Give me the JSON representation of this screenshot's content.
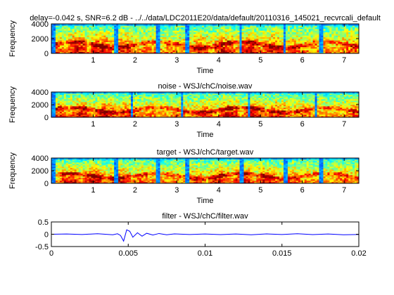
{
  "chart_data": [
    {
      "type": "heatmap",
      "title": "delay=-0.042 s, SNR=6.2 dB - ../../data/LDC2011E20/data/default/20110316_145021_recvrcali_default",
      "xlabel": "Time",
      "ylabel": "Frequency",
      "xlim": [
        0,
        7.35
      ],
      "ylim": [
        0,
        4000
      ],
      "xticks": [
        1,
        2,
        3,
        4,
        5,
        6,
        7
      ],
      "yticks": [
        0,
        2000,
        4000
      ],
      "colormap": "jet",
      "seed": 11,
      "silences": [
        [
          0.0,
          0.12
        ],
        [
          1.52,
          1.6
        ],
        [
          2.52,
          2.6
        ],
        [
          3.22,
          3.3
        ],
        [
          4.48,
          4.55
        ],
        [
          5.55,
          5.62
        ],
        [
          6.42,
          6.5
        ]
      ]
    },
    {
      "type": "heatmap",
      "title": "noise - WSJ/chC/noise.wav",
      "xlabel": "Time",
      "ylabel": "Frequency",
      "xlim": [
        0,
        7.35
      ],
      "ylim": [
        0,
        4000
      ],
      "xticks": [
        1,
        2,
        3,
        4,
        5,
        6,
        7
      ],
      "yticks": [
        0,
        2000,
        4000
      ],
      "colormap": "jet",
      "seed": 23,
      "silences": [
        [
          0.0,
          0.1
        ],
        [
          1.9,
          1.96
        ],
        [
          3.1,
          3.16
        ],
        [
          4.7,
          4.76
        ],
        [
          6.3,
          6.36
        ]
      ]
    },
    {
      "type": "heatmap",
      "title": "target - WSJ/chC/target.wav",
      "xlabel": "Time",
      "ylabel": "Frequency",
      "xlim": [
        0,
        7.35
      ],
      "ylim": [
        0,
        4000
      ],
      "xticks": [
        1,
        2,
        3,
        4,
        5,
        6,
        7
      ],
      "yticks": [
        0,
        2000,
        4000
      ],
      "colormap": "jet",
      "seed": 37,
      "silences": [
        [
          0.0,
          0.08
        ],
        [
          1.5,
          1.62
        ],
        [
          2.5,
          2.62
        ],
        [
          3.2,
          3.32
        ],
        [
          4.5,
          4.58
        ],
        [
          5.55,
          5.64
        ],
        [
          6.4,
          6.5
        ]
      ]
    },
    {
      "type": "line",
      "title": "filter - WSJ/chC/filter.wav",
      "xlabel": "",
      "ylabel": "",
      "xlim": [
        0,
        0.02
      ],
      "ylim": [
        -0.5,
        0.5
      ],
      "xticks": [
        0,
        0.005,
        0.01,
        0.015,
        0.02
      ],
      "xtick_labels": [
        "0",
        "0.005",
        "0.01",
        "0.015",
        "0.02"
      ],
      "yticks": [
        -0.5,
        0,
        0.5
      ],
      "ytick_labels": [
        "-0.5",
        "0",
        "0.5"
      ],
      "color": "#0000ff",
      "x": [
        0,
        0.001,
        0.002,
        0.003,
        0.004,
        0.0043,
        0.0045,
        0.0047,
        0.0049,
        0.0051,
        0.0053,
        0.0056,
        0.0059,
        0.0062,
        0.0066,
        0.007,
        0.0075,
        0.008,
        0.009,
        0.01,
        0.011,
        0.012,
        0.013,
        0.014,
        0.015,
        0.016,
        0.017,
        0.018,
        0.019,
        0.02
      ],
      "y": [
        0,
        0.01,
        -0.01,
        0.02,
        -0.02,
        0.02,
        -0.05,
        -0.28,
        0.18,
        0.12,
        -0.12,
        0.06,
        -0.08,
        0.04,
        -0.03,
        0.03,
        -0.02,
        0.015,
        -0.01,
        0.01,
        -0.015,
        0.01,
        -0.02,
        0.015,
        -0.01,
        0.02,
        -0.015,
        0.01,
        -0.02,
        -0.01
      ]
    }
  ]
}
